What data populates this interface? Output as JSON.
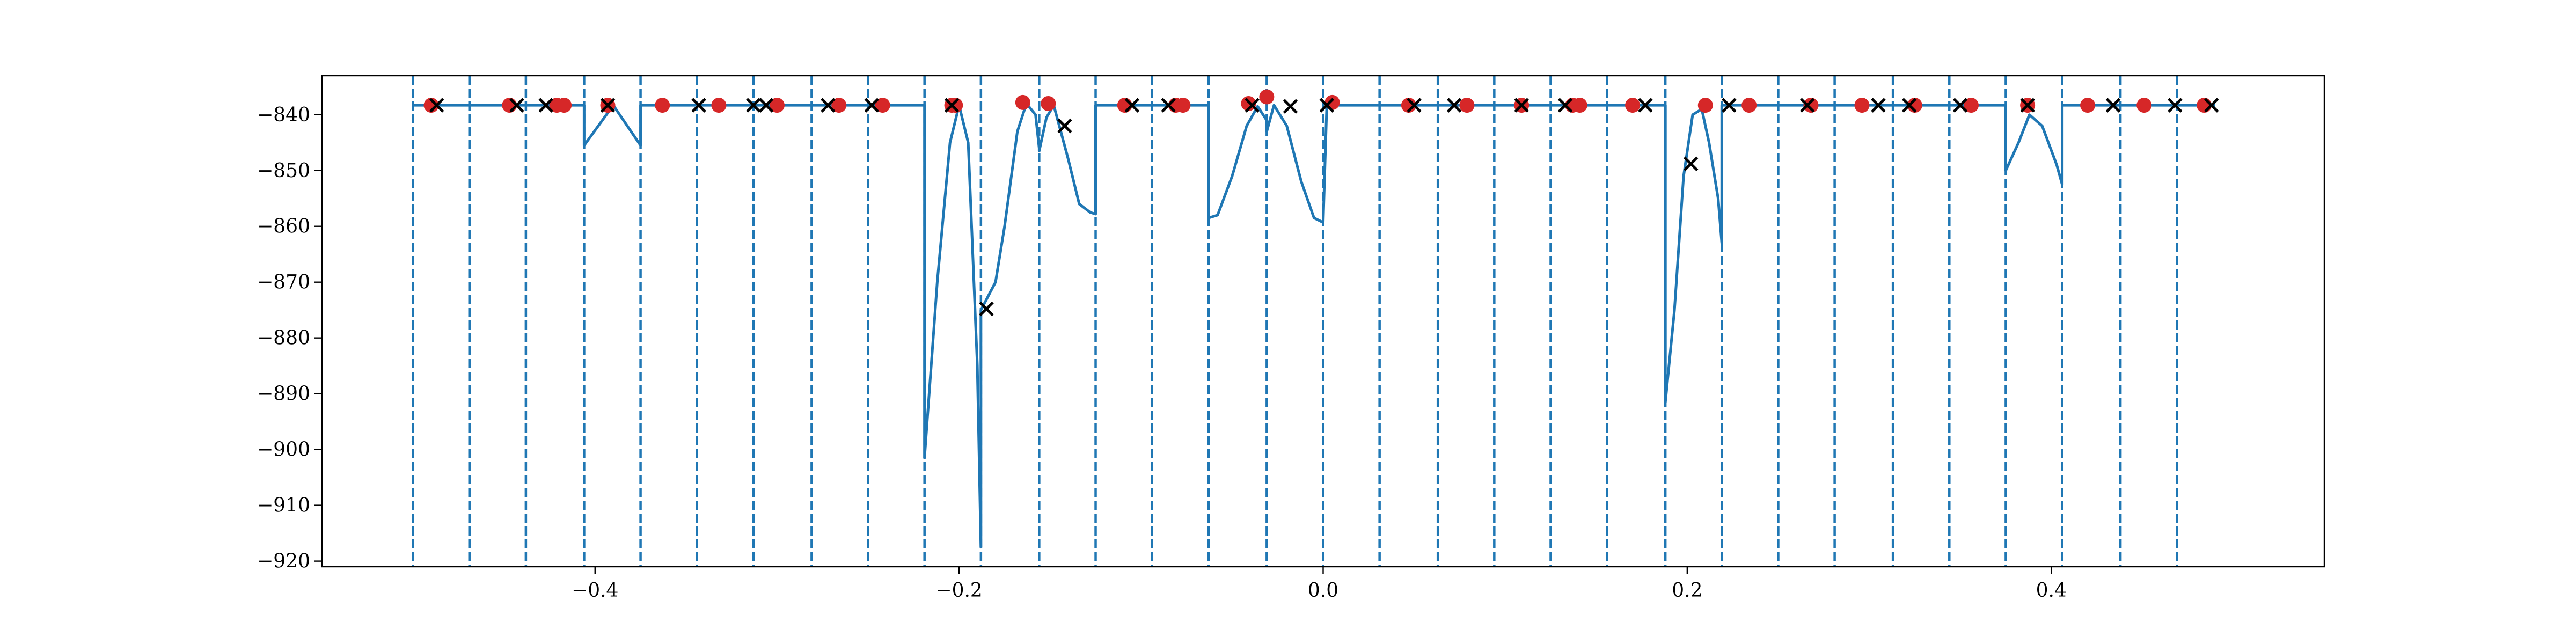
{
  "chart_data": {
    "type": "line",
    "title": "",
    "xlabel": "",
    "ylabel": "",
    "xlim": [
      -0.55,
      0.55
    ],
    "ylim": [
      -921,
      -833
    ],
    "x_ticks": [
      -0.4,
      -0.2,
      0.0,
      0.2,
      0.4
    ],
    "x_tick_labels": [
      "−0.4",
      "−0.2",
      "0.0",
      "0.2",
      "0.4"
    ],
    "y_ticks": [
      -840,
      -850,
      -860,
      -870,
      -880,
      -890,
      -900,
      -910,
      -920
    ],
    "y_tick_labels": [
      "−840",
      "−850",
      "−860",
      "−870",
      "−880",
      "−890",
      "−900",
      "−910",
      "−920"
    ],
    "grid": false,
    "colors": {
      "line": "#1f77b4",
      "vlines": "#1f77b4",
      "dots": "#d62728",
      "crosses": "#000000"
    },
    "vertical_lines": [
      -0.5,
      -0.469,
      -0.438,
      -0.406,
      -0.375,
      -0.344,
      -0.313,
      -0.281,
      -0.25,
      -0.219,
      -0.188,
      -0.156,
      -0.125,
      -0.094,
      -0.063,
      -0.031,
      0.0,
      0.031,
      0.063,
      0.094,
      0.125,
      0.156,
      0.188,
      0.219,
      0.25,
      0.281,
      0.313,
      0.344,
      0.375,
      0.406,
      0.438,
      0.469
    ],
    "curve": {
      "x": [
        -0.5,
        -0.406,
        -0.406,
        -0.39,
        -0.375,
        -0.375,
        -0.219,
        -0.219,
        -0.212,
        -0.205,
        -0.2,
        -0.195,
        -0.19,
        -0.188,
        -0.188,
        -0.18,
        -0.175,
        -0.168,
        -0.163,
        -0.158,
        -0.156,
        -0.156,
        -0.152,
        -0.148,
        -0.14,
        -0.134,
        -0.128,
        -0.125,
        -0.125,
        -0.063,
        -0.063,
        -0.058,
        -0.05,
        -0.042,
        -0.036,
        -0.031,
        -0.031,
        -0.027,
        -0.02,
        -0.012,
        -0.005,
        0.0,
        0.002,
        0.008,
        0.014,
        0.02,
        0.026,
        0.031,
        0.031,
        0.188,
        0.188,
        0.193,
        0.198,
        0.203,
        0.208,
        0.212,
        0.217,
        0.219,
        0.219,
        0.375,
        0.375,
        0.382,
        0.388,
        0.395,
        0.403,
        0.406,
        0.406,
        0.49
      ],
      "y": [
        -838.3,
        -838.3,
        -845.5,
        -838.3,
        -845.5,
        -838.3,
        -838.3,
        -901.5,
        -870.0,
        -845.0,
        -838.3,
        -845.0,
        -885.0,
        -917.5,
        -875.0,
        -870.0,
        -860.0,
        -843.0,
        -838.0,
        -840.0,
        -846.0,
        -846.5,
        -840.5,
        -838.3,
        -848.0,
        -856.0,
        -857.5,
        -857.8,
        -838.3,
        -838.3,
        -858.5,
        -858.0,
        -851.0,
        -842.0,
        -838.5,
        -841.0,
        -843.0,
        -838.3,
        -842.0,
        -852.0,
        -858.5,
        -859.3,
        -838.3,
        -838.3,
        -838.3,
        -838.3,
        -838.3,
        -838.3,
        -838.3,
        -838.3,
        -891.5,
        -875.0,
        -851.0,
        -840.0,
        -839.0,
        -845.0,
        -855.0,
        -863.0,
        -838.3,
        -838.3,
        -850.0,
        -845.0,
        -840.0,
        -842.0,
        -849.0,
        -852.5,
        -838.3,
        -838.3
      ]
    },
    "red_points": {
      "x": [
        -0.49,
        -0.447,
        -0.421,
        -0.417,
        -0.393,
        -0.363,
        -0.332,
        -0.3,
        -0.266,
        -0.242,
        -0.204,
        -0.202,
        -0.165,
        -0.151,
        -0.109,
        -0.081,
        -0.077,
        -0.041,
        -0.031,
        0.005,
        0.047,
        0.079,
        0.109,
        0.137,
        0.141,
        0.17,
        0.21,
        0.234,
        0.268,
        0.296,
        0.325,
        0.356,
        0.387,
        0.42,
        0.451,
        0.484
      ],
      "y": [
        -838.3,
        -838.3,
        -838.3,
        -838.3,
        -838.3,
        -838.3,
        -838.3,
        -838.3,
        -838.3,
        -838.3,
        -838.3,
        -838.3,
        -837.8,
        -838.0,
        -838.3,
        -838.3,
        -838.3,
        -838.0,
        -836.8,
        -837.8,
        -838.3,
        -838.3,
        -838.3,
        -838.3,
        -838.3,
        -838.3,
        -838.3,
        -838.3,
        -838.3,
        -838.3,
        -838.3,
        -838.3,
        -838.3,
        -838.3,
        -838.3,
        -838.3
      ]
    },
    "x_points": {
      "x": [
        -0.487,
        -0.443,
        -0.427,
        -0.393,
        -0.343,
        -0.313,
        -0.306,
        -0.272,
        -0.248,
        -0.204,
        -0.185,
        -0.142,
        -0.105,
        -0.085,
        -0.039,
        -0.018,
        0.002,
        0.05,
        0.072,
        0.109,
        0.133,
        0.177,
        0.202,
        0.223,
        0.266,
        0.305,
        0.322,
        0.35,
        0.387,
        0.434,
        0.468,
        0.488
      ],
      "y": [
        -838.3,
        -838.3,
        -838.3,
        -838.3,
        -838.3,
        -838.3,
        -838.3,
        -838.3,
        -838.3,
        -838.3,
        -874.8,
        -842.0,
        -838.3,
        -838.3,
        -838.3,
        -838.5,
        -838.3,
        -838.3,
        -838.3,
        -838.3,
        -838.3,
        -838.3,
        -848.8,
        -838.3,
        -838.3,
        -838.3,
        -838.3,
        -838.3,
        -838.3,
        -838.3,
        -838.3,
        -838.3
      ]
    }
  }
}
